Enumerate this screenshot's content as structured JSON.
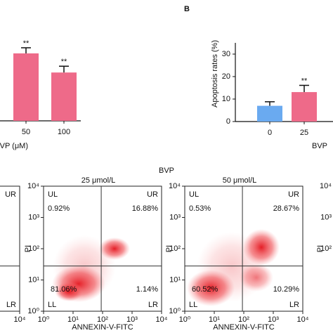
{
  "group_label": "BVP",
  "chart_data": [
    {
      "type": "bar",
      "xlabel": "BVP (μM)",
      "categories": [
        "50",
        "100"
      ],
      "values": [
        30,
        21.5
      ],
      "errors": [
        2.5,
        2.8
      ],
      "sig": [
        "**",
        "**"
      ],
      "ylim": [
        0,
        35
      ],
      "colors": [
        "#ee6a89",
        "#ee6a89"
      ]
    },
    {
      "type": "bar",
      "panel": "B",
      "ylabel": "Apoptosis rates (%)",
      "xlabel": "BVP",
      "categories": [
        "0",
        "25"
      ],
      "values": [
        7,
        13.1
      ],
      "errors": [
        1.8,
        3
      ],
      "sig": [
        null,
        "**"
      ],
      "ylim": [
        0,
        35
      ],
      "yticks": [
        0,
        10,
        20,
        30
      ],
      "colors": [
        "#6aaaf0",
        "#ee6a89"
      ]
    },
    {
      "type": "flow",
      "quadrants": [
        "UR",
        "LR"
      ],
      "log": true,
      "xlim": [
        1,
        10000
      ],
      "ylim": [
        1,
        10000
      ],
      "xticks": [
        {
          "value": 10000,
          "label": "10⁴"
        }
      ],
      "gate": [
        90,
        28
      ]
    },
    {
      "type": "flow",
      "title": "25 μmol/L",
      "xlabel": "ANNEXIN-V-FITC",
      "ylabel": "PI",
      "log": true,
      "xlim": [
        1,
        10000
      ],
      "ylim": [
        1,
        10000
      ],
      "xticks": [
        {
          "value": 1,
          "label": "10⁰"
        },
        {
          "value": 10,
          "label": "10¹"
        },
        {
          "value": 100,
          "label": "10²"
        },
        {
          "value": 1000,
          "label": "10³"
        },
        {
          "value": 10000,
          "label": "10⁴"
        }
      ],
      "yticks": [
        {
          "value": 1,
          "label": "10⁰"
        },
        {
          "value": 10,
          "label": "10¹"
        },
        {
          "value": 100,
          "label": "10²"
        },
        {
          "value": 1000,
          "label": "10³"
        },
        {
          "value": 10000,
          "label": "10⁴"
        }
      ],
      "gate": [
        90,
        28
      ],
      "quadrants": [
        "UL",
        "UR",
        "LL",
        "LR"
      ],
      "values": [
        0.92,
        16.88,
        81.06,
        1.14
      ],
      "value_labels": [
        "0.92%",
        "16.88%",
        "81.06%",
        "1.14%"
      ]
    },
    {
      "type": "flow",
      "title": "50 μmol/L",
      "xlabel": "ANNEXIN-V-FITC",
      "ylabel": "PI",
      "log": true,
      "xlim": [
        1,
        10000
      ],
      "ylim": [
        1,
        10000
      ],
      "xticks": [
        {
          "value": 1,
          "label": "10⁰"
        },
        {
          "value": 10,
          "label": "10¹"
        },
        {
          "value": 100,
          "label": "10²"
        },
        {
          "value": 1000,
          "label": "10³"
        },
        {
          "value": 10000,
          "label": "10⁴"
        }
      ],
      "yticks": [
        {
          "value": 1,
          "label": "10⁰"
        },
        {
          "value": 10,
          "label": "10¹"
        },
        {
          "value": 100,
          "label": "10²"
        },
        {
          "value": 1000,
          "label": "10³"
        },
        {
          "value": 10000,
          "label": "10⁴"
        }
      ],
      "gate": [
        90,
        28
      ],
      "quadrants": [
        "UL",
        "UR",
        "LL",
        "LR"
      ],
      "values": [
        0.53,
        28.67,
        60.52,
        10.29
      ],
      "value_labels": [
        "0.53%",
        "28.67%",
        "60.52%",
        "10.29%"
      ]
    },
    {
      "type": "flow",
      "ylabel": "PI",
      "log": true,
      "xlim": [
        1,
        10000
      ],
      "ylim": [
        1,
        10000
      ],
      "yticks": [
        {
          "value": 100,
          "label": "10²"
        },
        {
          "value": 1000,
          "label": "10³"
        },
        {
          "value": 10000,
          "label": "10⁴"
        }
      ]
    }
  ]
}
